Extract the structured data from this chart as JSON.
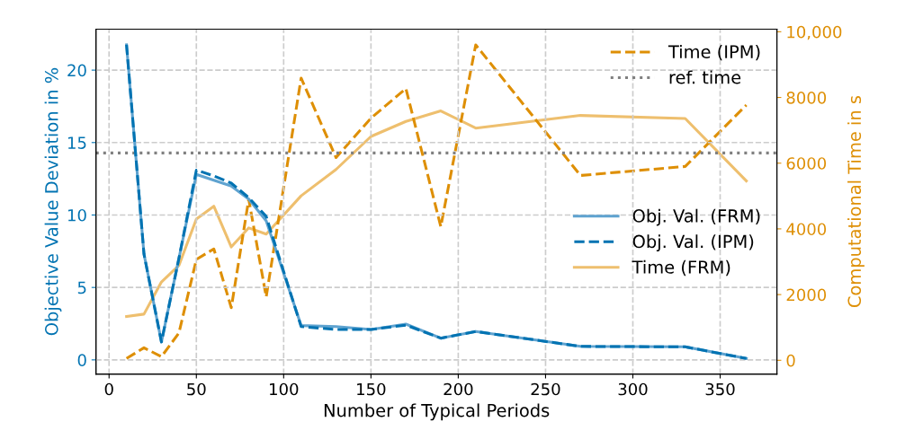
{
  "chart_data": {
    "type": "line",
    "xlabel": "Number of Typical Periods",
    "ylabel": "Objective Value Deviation in %",
    "y2label": "Computational Time in s",
    "x": [
      10,
      20,
      30,
      40,
      50,
      60,
      70,
      80,
      90,
      110,
      130,
      150,
      170,
      190,
      210,
      270,
      330,
      365
    ],
    "xlim": [
      -7.5,
      382.5
    ],
    "xticks": [
      0,
      50,
      100,
      150,
      200,
      250,
      300,
      350
    ],
    "ylim": [
      -0.98,
      22.83
    ],
    "yticks": [
      0,
      5,
      10,
      15,
      20
    ],
    "y2lim": [
      -420,
      10080
    ],
    "y2ticks": [
      0,
      2000,
      4000,
      6000,
      8000,
      {
        "value": 10000,
        "label": "10,000"
      }
    ],
    "grid": true,
    "legend": "center right",
    "series": [
      {
        "name": "Obj. Val. (FRM)",
        "color": "#5fa3d0",
        "line_style": "solid",
        "values": [
          21.75,
          7.3,
          1.24,
          7.0,
          12.8,
          12.4,
          12.0,
          11.1,
          9.6,
          2.37,
          2.3,
          2.1,
          2.47,
          1.5,
          1.96,
          0.93,
          0.9,
          0.1
        ]
      },
      {
        "name": "Obj. Val. (IPM)",
        "color": "#0173b2",
        "line_style": "dashed",
        "values": [
          21.75,
          7.3,
          1.24,
          7.0,
          13.1,
          12.7,
          12.2,
          11.2,
          9.9,
          2.3,
          2.1,
          2.1,
          2.4,
          1.5,
          1.96,
          0.93,
          0.9,
          0.1
        ]
      },
      {
        "name": "Time (FRM)",
        "color": "#eebf6e",
        "line_style": "solid",
        "axis": "y2",
        "values": [
          1334,
          1405,
          2383,
          2885,
          4300,
          4690,
          3450,
          4030,
          3840,
          5005,
          5808,
          6813,
          7270,
          7590,
          7068,
          7452,
          7360,
          5460
        ]
      },
      {
        "name": "Time (IPM)",
        "color": "#de8f05",
        "line_style": "dashed",
        "axis": "y2",
        "values": [
          55,
          380,
          110,
          830,
          3070,
          3390,
          1600,
          4900,
          1930,
          8590,
          6170,
          7370,
          8270,
          4070,
          9600,
          5625,
          5900,
          7770
        ]
      }
    ],
    "ref_lines": [
      {
        "axis": "y2",
        "value": 6310,
        "label": "ref. time",
        "color": "#808080",
        "line_style": "dotted"
      }
    ]
  }
}
